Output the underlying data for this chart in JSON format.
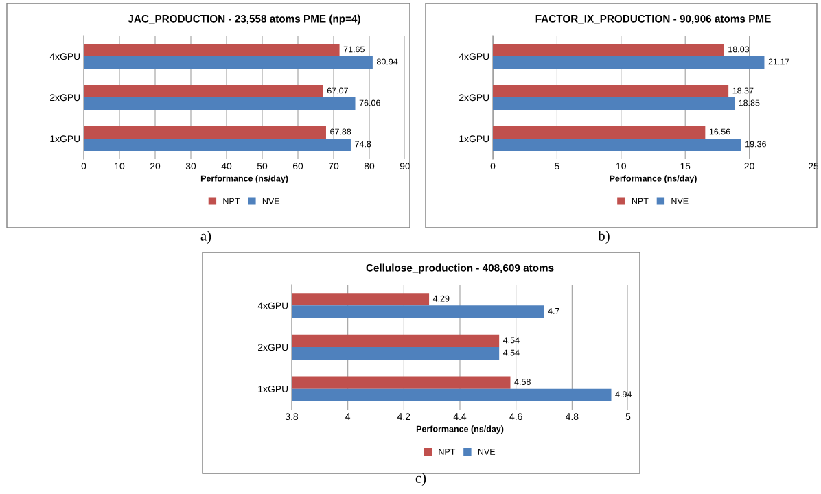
{
  "chart_data": [
    {
      "type": "bar",
      "orientation": "horizontal",
      "title": "JAC_PRODUCTION - 23,558 atoms PME (np=4)",
      "xlabel": "Performance (ns/day)",
      "categories": [
        "4xGPU",
        "2xGPU",
        "1xGPU"
      ],
      "series": [
        {
          "name": "NPT",
          "color": "#c0504d",
          "values": [
            71.65,
            67.07,
            67.88
          ]
        },
        {
          "name": "NVE",
          "color": "#4f81bd",
          "values": [
            80.94,
            76.06,
            74.8
          ]
        }
      ],
      "xlim": [
        0,
        90
      ],
      "xticks": [
        0,
        10,
        20,
        30,
        40,
        50,
        60,
        70,
        80,
        90
      ],
      "grid": "x",
      "legend": "bottom",
      "data_labels": true,
      "annotations": [
        "a)"
      ]
    },
    {
      "type": "bar",
      "orientation": "horizontal",
      "title": "FACTOR_IX_PRODUCTION - 90,906 atoms PME",
      "xlabel": "Performance (ns/day)",
      "categories": [
        "4xGPU",
        "2xGPU",
        "1xGPU"
      ],
      "series": [
        {
          "name": "NPT",
          "color": "#c0504d",
          "values": [
            18.03,
            18.37,
            16.56
          ]
        },
        {
          "name": "NVE",
          "color": "#4f81bd",
          "values": [
            21.17,
            18.85,
            19.36
          ]
        }
      ],
      "xlim": [
        0,
        25
      ],
      "xticks": [
        0,
        5,
        10,
        15,
        20,
        25
      ],
      "grid": "x",
      "legend": "bottom",
      "data_labels": true,
      "annotations": [
        "b)"
      ]
    },
    {
      "type": "bar",
      "orientation": "horizontal",
      "title": "Cellulose_production - 408,609 atoms",
      "xlabel": "Performance (ns/day)",
      "categories": [
        "4xGPU",
        "2xGPU",
        "1xGPU"
      ],
      "series": [
        {
          "name": "NPT",
          "color": "#c0504d",
          "values": [
            4.29,
            4.54,
            4.58
          ]
        },
        {
          "name": "NVE",
          "color": "#4f81bd",
          "values": [
            4.7,
            4.54,
            4.94
          ]
        }
      ],
      "xlim": [
        3.8,
        5
      ],
      "xticks": [
        3.8,
        4,
        4.2,
        4.4,
        4.6,
        4.8,
        5
      ],
      "grid": "x",
      "legend": "bottom",
      "data_labels": true,
      "annotations": [
        "c)"
      ]
    }
  ]
}
